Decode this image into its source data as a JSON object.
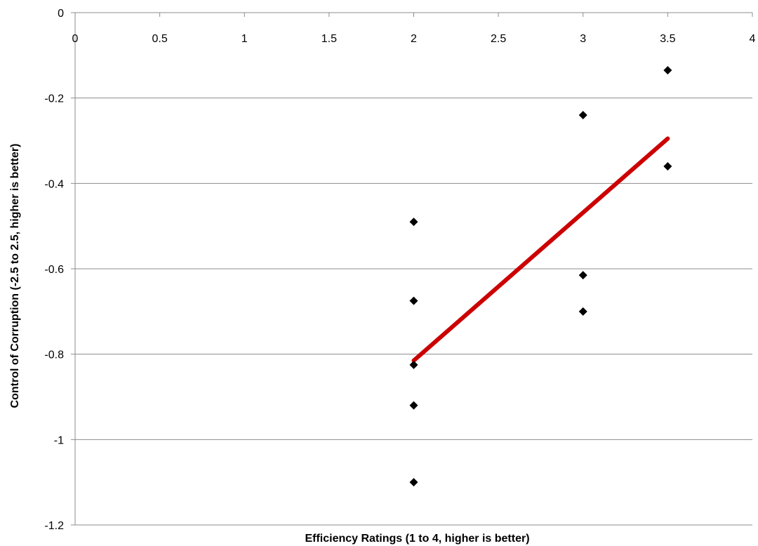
{
  "chart_data": {
    "type": "scatter",
    "title": "",
    "xlabel": "Efficiency Ratings (1 to 4, higher is better)",
    "ylabel": "Control of Corruption (-2.5 to 2.5, higher is better)",
    "xlim": [
      0,
      4
    ],
    "ylim": [
      -1.2,
      0
    ],
    "x_ticks": [
      "0",
      "0.5",
      "1",
      "1.5",
      "2",
      "2.5",
      "3",
      "3.5",
      "4"
    ],
    "y_ticks": [
      "0",
      "-0.2",
      "-0.4",
      "-0.6",
      "-0.8",
      "-1",
      "-1.2"
    ],
    "x_axis_position": "top",
    "grid": "horizontal",
    "series": [
      {
        "marker": "diamond",
        "color": "#000000",
        "points": [
          {
            "x": 2,
            "y": -0.49
          },
          {
            "x": 2,
            "y": -0.675
          },
          {
            "x": 2,
            "y": -0.825
          },
          {
            "x": 2,
            "y": -0.92
          },
          {
            "x": 2,
            "y": -1.1
          },
          {
            "x": 3,
            "y": -0.24
          },
          {
            "x": 3,
            "y": -0.615
          },
          {
            "x": 3,
            "y": -0.7
          },
          {
            "x": 3.5,
            "y": -0.135
          },
          {
            "x": 3.5,
            "y": -0.36
          }
        ]
      }
    ],
    "trendline": {
      "color": "#cc0000",
      "start": {
        "x": 2,
        "y": -0.815
      },
      "end": {
        "x": 3.5,
        "y": -0.295
      }
    }
  }
}
